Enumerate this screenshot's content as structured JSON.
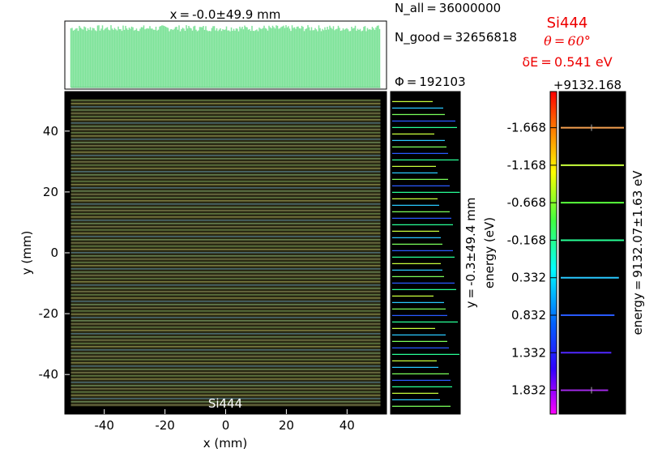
{
  "chart_data": {
    "type": "scatter",
    "title_x": "x = -0.0±49.9 mm",
    "xlabel": "x (mm)",
    "ylabel": "y (mm)",
    "xlim": [
      -53,
      53
    ],
    "ylim": [
      -53,
      53
    ],
    "x_ticks": [
      -40,
      -20,
      0,
      20,
      40
    ],
    "y_ticks": [
      -40,
      -20,
      0,
      20,
      40
    ],
    "x_tick_labels": [
      "-40",
      "-20",
      "0",
      "20",
      "40"
    ],
    "y_tick_labels": [
      "-40",
      "-20",
      "0",
      "20",
      "40"
    ],
    "footprint_x": [
      -51,
      51
    ],
    "footprint_y": [
      -50.5,
      50.5
    ],
    "inset_label": "Si444",
    "stats": {
      "n_all": "N_all = 36000000",
      "n_good": "N_good = 32656818",
      "phi": "Φ = 192103"
    },
    "right_axis_label_1": "y = -0.3±49.4 mm",
    "right_axis_label_2": "energy (eV)",
    "colorbar": {
      "offset_label": "+9132.168",
      "ticks": [
        -1.668,
        -1.168,
        -0.668,
        -0.168,
        0.332,
        0.832,
        1.332,
        1.832
      ],
      "tick_labels": [
        "-1.668",
        "-1.168",
        "-0.668",
        "-0.168",
        "0.332",
        "0.832",
        "1.332",
        "1.832"
      ],
      "range": [
        -2.15,
        2.15
      ],
      "side_label": "energy = 9132.07±1.63 eV"
    },
    "energy_lines": [
      {
        "value": -1.668,
        "color": "#f5a050",
        "length": 1.0
      },
      {
        "value": -1.168,
        "color": "#c8ff3c",
        "length": 1.0
      },
      {
        "value": -0.668,
        "color": "#5aff3c",
        "length": 1.0
      },
      {
        "value": -0.168,
        "color": "#28ff96",
        "length": 1.0
      },
      {
        "value": 0.332,
        "color": "#28c8ff",
        "length": 0.92
      },
      {
        "value": 0.832,
        "color": "#285aff",
        "length": 0.85
      },
      {
        "value": 1.332,
        "color": "#5028ff",
        "length": 0.8
      },
      {
        "value": 1.832,
        "color": "#a028e6",
        "length": 0.75
      }
    ],
    "crystal": {
      "name": "Si444",
      "theta": "θ = 60°",
      "dE": "δE = 0.541 eV"
    }
  }
}
